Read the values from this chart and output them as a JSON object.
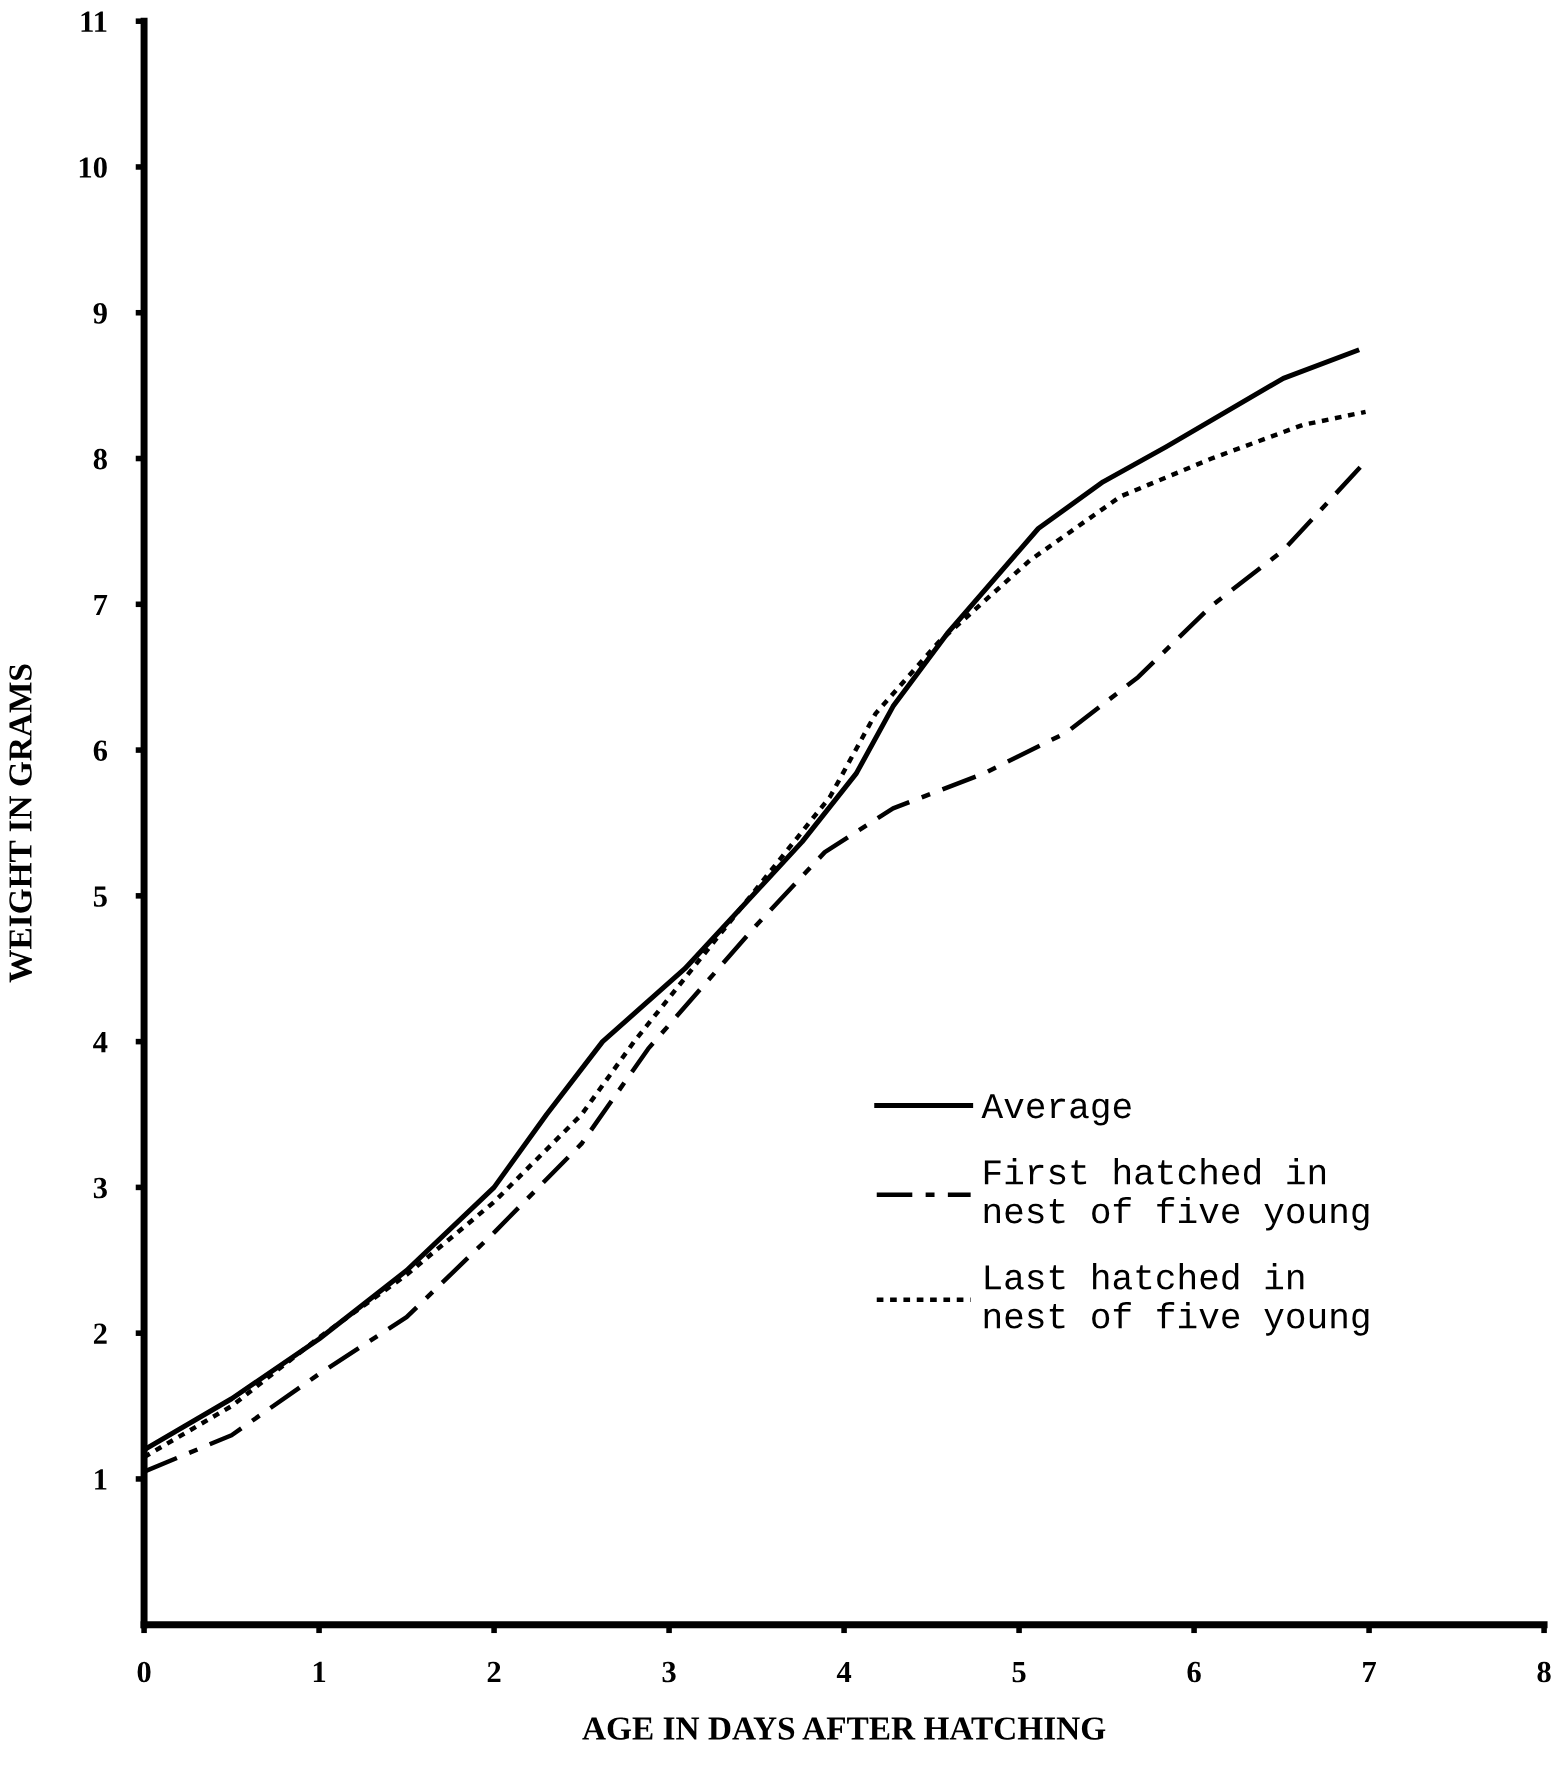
{
  "chart_data": {
    "type": "line",
    "xlabel": "AGE IN DAYS AFTER HATCHING",
    "ylabel": "WEIGHT IN GRAMS",
    "xlim": [
      0,
      8
    ],
    "xticks": [
      0,
      1,
      2,
      3,
      4,
      5,
      6,
      7,
      8
    ],
    "ylim": [
      0,
      11
    ],
    "yticks": [
      1,
      2,
      3,
      4,
      5,
      6,
      7,
      8,
      9,
      10,
      11
    ],
    "grid": false,
    "legend": "lower right",
    "marker": "none",
    "series": [
      {
        "name": "Average",
        "color": "#000000",
        "line_style": "solid",
        "x": [
          0,
          0.5,
          1,
          1.5,
          2,
          2.3,
          2.62,
          3.09,
          3.76,
          4.07,
          4.28,
          4.59,
          5.11,
          5.48,
          5.84,
          6.51,
          6.93
        ],
        "values": [
          1.2,
          1.55,
          1.96,
          2.43,
          3.0,
          3.5,
          4.0,
          4.5,
          5.37,
          5.84,
          6.3,
          6.8,
          7.52,
          7.84,
          8.08,
          8.55,
          8.74
        ]
      },
      {
        "name": "First hatched in\nnest of five young",
        "color": "#000000",
        "line_style": "dashed",
        "x": [
          0,
          0.5,
          1,
          1.5,
          2,
          2.5,
          2.88,
          3.5,
          3.89,
          4.28,
          4.8,
          5.27,
          5.68,
          6.1,
          6.51,
          6.98
        ],
        "values": [
          1.05,
          1.3,
          1.72,
          2.11,
          2.69,
          3.3,
          3.95,
          4.8,
          5.3,
          5.6,
          5.84,
          6.12,
          6.5,
          6.99,
          7.37,
          7.98
        ]
      },
      {
        "name": "Last hatched in\nnest of five young",
        "color": "#000000",
        "line_style": "dotted",
        "x": [
          0,
          0.5,
          1,
          1.5,
          2,
          2.5,
          2.8,
          3.92,
          4.18,
          4.54,
          5.06,
          5.58,
          6.1,
          6.62,
          6.98
        ],
        "values": [
          1.15,
          1.5,
          1.97,
          2.4,
          2.9,
          3.5,
          4.0,
          5.68,
          6.25,
          6.74,
          7.3,
          7.74,
          8.0,
          8.23,
          8.32
        ]
      }
    ]
  }
}
